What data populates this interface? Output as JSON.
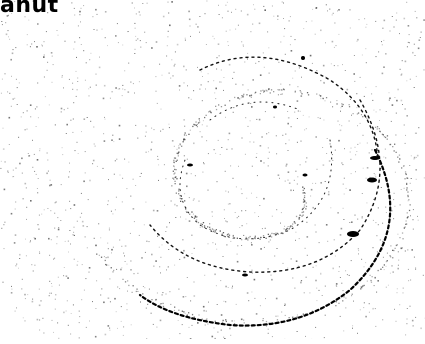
{
  "image": {
    "corner_text": "anut",
    "colors": {
      "background": "#ffffff",
      "ink": "#000000",
      "speckle": "#333333"
    }
  }
}
